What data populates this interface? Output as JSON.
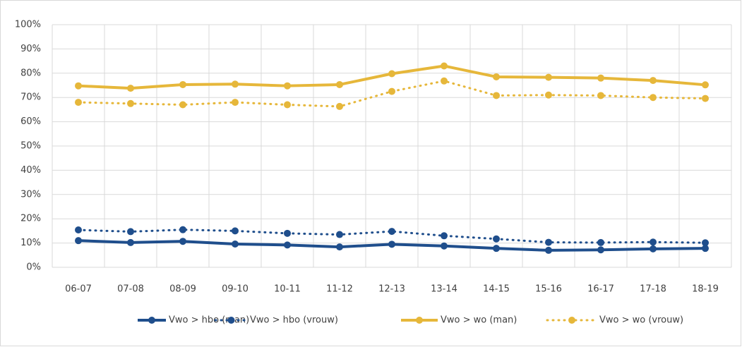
{
  "chart_data": {
    "type": "line",
    "categories": [
      "06-07",
      "07-08",
      "08-09",
      "09-10",
      "10-11",
      "11-12",
      "12-13",
      "13-14",
      "14-15",
      "15-16",
      "16-17",
      "17-18",
      "18-19"
    ],
    "series": [
      {
        "name": "Vwo > hbo (man)",
        "color": "#1f4e8c",
        "dashed": false,
        "values": [
          11,
          10.2,
          10.7,
          9.6,
          9.2,
          8.4,
          9.5,
          8.8,
          7.8,
          7,
          7.2,
          7.6,
          7.8
        ]
      },
      {
        "name": "Vwo > hbo (vrouw)",
        "color": "#1f4e8c",
        "dashed": true,
        "values": [
          15.4,
          14.7,
          15.5,
          15,
          14,
          13.5,
          14.8,
          13,
          11.7,
          10.3,
          10.2,
          10.4,
          10.1
        ]
      },
      {
        "name": "Vwo > wo (man)",
        "color": "#e6b73a",
        "dashed": false,
        "values": [
          74.8,
          73.8,
          75.3,
          75.5,
          74.8,
          75.3,
          79.8,
          83,
          78.5,
          78.3,
          78,
          77,
          75.2
        ]
      },
      {
        "name": "Vwo > wo (vrouw)",
        "color": "#e6b73a",
        "dashed": true,
        "values": [
          68,
          67.5,
          67,
          68,
          67,
          66.3,
          72.5,
          76.8,
          70.8,
          71,
          70.8,
          70,
          69.6
        ]
      }
    ],
    "ylim": [
      0,
      100
    ],
    "yticks": [
      {
        "value": 0,
        "label": "0%"
      },
      {
        "value": 10,
        "label": "10%"
      },
      {
        "value": 20,
        "label": "20%"
      },
      {
        "value": 30,
        "label": "30%"
      },
      {
        "value": 40,
        "label": "40%"
      },
      {
        "value": 50,
        "label": "50%"
      },
      {
        "value": 60,
        "label": "60%"
      },
      {
        "value": 70,
        "label": "70%"
      },
      {
        "value": 80,
        "label": "80%"
      },
      {
        "value": 90,
        "label": "90%"
      },
      {
        "value": 100,
        "label": "100%"
      }
    ],
    "grid": true,
    "legend": "bottom"
  }
}
